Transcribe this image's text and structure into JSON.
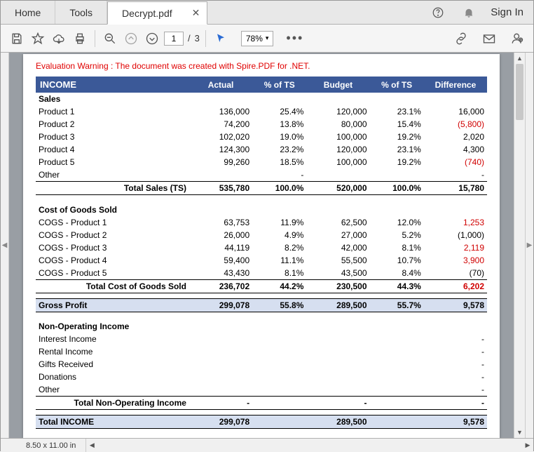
{
  "tabs": {
    "home": "Home",
    "tools": "Tools",
    "doc": "Decrypt.pdf"
  },
  "header": {
    "signin": "Sign In"
  },
  "toolbar": {
    "page_current": "1",
    "page_total": "3",
    "zoom": "78%"
  },
  "warning": "Evaluation Warning : The document was created with Spire.PDF for .NET.",
  "colors": {
    "header_bg": "#3b5998",
    "highlight_bg": "#d6dff0",
    "negative": "#d00000",
    "warning": "#e00000"
  },
  "table": {
    "headers": [
      "INCOME",
      "Actual",
      "% of TS",
      "Budget",
      "% of TS",
      "Difference"
    ],
    "sales": {
      "title": "Sales",
      "rows": [
        {
          "label": "Product 1",
          "actual": "136,000",
          "pct_a": "25.4%",
          "budget": "120,000",
          "pct_b": "23.1%",
          "diff": "16,000",
          "diff_neg": false
        },
        {
          "label": "Product 2",
          "actual": "74,200",
          "pct_a": "13.8%",
          "budget": "80,000",
          "pct_b": "15.4%",
          "diff": "(5,800)",
          "diff_neg": true
        },
        {
          "label": "Product 3",
          "actual": "102,020",
          "pct_a": "19.0%",
          "budget": "100,000",
          "pct_b": "19.2%",
          "diff": "2,020",
          "diff_neg": false
        },
        {
          "label": "Product 4",
          "actual": "124,300",
          "pct_a": "23.2%",
          "budget": "120,000",
          "pct_b": "23.1%",
          "diff": "4,300",
          "diff_neg": false
        },
        {
          "label": "Product 5",
          "actual": "99,260",
          "pct_a": "18.5%",
          "budget": "100,000",
          "pct_b": "19.2%",
          "diff": "(740)",
          "diff_neg": true
        },
        {
          "label": "Other",
          "actual": "",
          "pct_a": "-",
          "budget": "",
          "pct_b": "",
          "diff": "-",
          "diff_neg": false
        }
      ],
      "total": {
        "label": "Total Sales (TS)",
        "actual": "535,780",
        "pct_a": "100.0%",
        "budget": "520,000",
        "pct_b": "100.0%",
        "diff": "15,780"
      }
    },
    "cogs": {
      "title": "Cost of Goods Sold",
      "rows": [
        {
          "label": "COGS - Product 1",
          "actual": "63,753",
          "pct_a": "11.9%",
          "budget": "62,500",
          "pct_b": "12.0%",
          "diff": "1,253",
          "diff_red": true
        },
        {
          "label": "COGS - Product 2",
          "actual": "26,000",
          "pct_a": "4.9%",
          "budget": "27,000",
          "pct_b": "5.2%",
          "diff": "(1,000)",
          "diff_red": false
        },
        {
          "label": "COGS - Product 3",
          "actual": "44,119",
          "pct_a": "8.2%",
          "budget": "42,000",
          "pct_b": "8.1%",
          "diff": "2,119",
          "diff_red": true
        },
        {
          "label": "COGS - Product 4",
          "actual": "59,400",
          "pct_a": "11.1%",
          "budget": "55,500",
          "pct_b": "10.7%",
          "diff": "3,900",
          "diff_red": true
        },
        {
          "label": "COGS - Product 5",
          "actual": "43,430",
          "pct_a": "8.1%",
          "budget": "43,500",
          "pct_b": "8.4%",
          "diff": "(70)",
          "diff_red": false
        }
      ],
      "total": {
        "label": "Total Cost of Goods Sold",
        "actual": "236,702",
        "pct_a": "44.2%",
        "budget": "230,500",
        "pct_b": "44.3%",
        "diff": "6,202",
        "diff_red": true
      }
    },
    "gross": {
      "label": "Gross Profit",
      "actual": "299,078",
      "pct_a": "55.8%",
      "budget": "289,500",
      "pct_b": "55.7%",
      "diff": "9,578"
    },
    "nonop": {
      "title": "Non-Operating Income",
      "rows": [
        {
          "label": "Interest Income"
        },
        {
          "label": "Rental Income"
        },
        {
          "label": "Gifts Received"
        },
        {
          "label": "Donations"
        },
        {
          "label": "Other"
        }
      ],
      "total": {
        "label": "Total Non-Operating Income",
        "actual": "-",
        "budget": "-",
        "diff": "-"
      }
    },
    "total_income": {
      "label": "Total INCOME",
      "actual": "299,078",
      "budget": "289,500",
      "diff": "9,578"
    }
  },
  "status": {
    "dimensions": "8.50 x 11.00 in"
  }
}
